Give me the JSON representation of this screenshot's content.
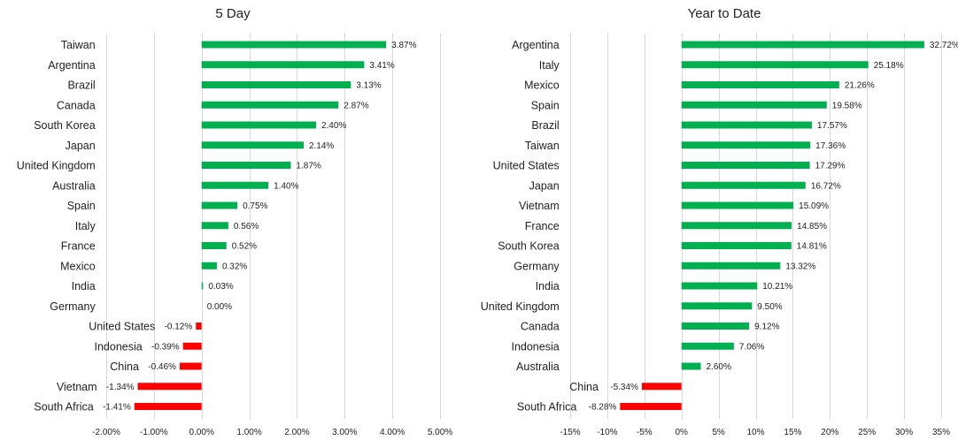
{
  "chart_data": [
    {
      "type": "bar",
      "orientation": "horizontal",
      "title": "5 Day",
      "categories": [
        "Taiwan",
        "Argentina",
        "Brazil",
        "Canada",
        "South Korea",
        "Japan",
        "United Kingdom",
        "Australia",
        "Spain",
        "Italy",
        "France",
        "Mexico",
        "India",
        "Germany",
        "United States",
        "Indonesia",
        "China",
        "Vietnam",
        "South Africa"
      ],
      "values": [
        3.87,
        3.41,
        3.13,
        2.87,
        2.4,
        2.14,
        1.87,
        1.4,
        0.75,
        0.56,
        0.52,
        0.32,
        0.03,
        0.0,
        -0.12,
        -0.39,
        -0.46,
        -1.34,
        -1.41
      ],
      "value_labels": [
        "3.87%",
        "3.41%",
        "3.13%",
        "2.87%",
        "2.40%",
        "2.14%",
        "1.87%",
        "1.40%",
        "0.75%",
        "0.56%",
        "0.52%",
        "0.32%",
        "0.03%",
        "0.00%",
        "-0.12%",
        "-0.39%",
        "-0.46%",
        "-1.34%",
        "-1.41%"
      ],
      "xlim": [
        -2,
        5
      ],
      "xticks": [
        -2,
        -1,
        0,
        1,
        2,
        3,
        4,
        5
      ],
      "xtick_labels": [
        "-2.00%",
        "-1.00%",
        "0.00%",
        "1.00%",
        "2.00%",
        "3.00%",
        "4.00%",
        "5.00%"
      ],
      "grid": true,
      "colors": {
        "positive": "#00b050",
        "negative": "#ff0000",
        "grid": "#d9d9d9"
      }
    },
    {
      "type": "bar",
      "orientation": "horizontal",
      "title": "Year to Date",
      "categories": [
        "Argentina",
        "Italy",
        "Mexico",
        "Spain",
        "Brazil",
        "Taiwan",
        "United States",
        "Japan",
        "Vietnam",
        "France",
        "South Korea",
        "Germany",
        "India",
        "United Kingdom",
        "Canada",
        "Indonesia",
        "Australia",
        "China",
        "South Africa"
      ],
      "values": [
        32.72,
        25.18,
        21.26,
        19.58,
        17.57,
        17.36,
        17.29,
        16.72,
        15.09,
        14.85,
        14.81,
        13.32,
        10.21,
        9.5,
        9.12,
        7.06,
        2.6,
        -5.34,
        -8.28
      ],
      "value_labels": [
        "32.72%",
        "25.18%",
        "21.26%",
        "19.58%",
        "17.57%",
        "17.36%",
        "17.29%",
        "16.72%",
        "15.09%",
        "14.85%",
        "14.81%",
        "13.32%",
        "10.21%",
        "9.50%",
        "9.12%",
        "7.06%",
        "2.60%",
        "-5.34%",
        "-8.28%"
      ],
      "xlim": [
        -15,
        35
      ],
      "xticks": [
        -15,
        -10,
        -5,
        0,
        5,
        10,
        15,
        20,
        25,
        30,
        35
      ],
      "xtick_labels": [
        "-15%",
        "-10%",
        "-5%",
        "0%",
        "5%",
        "10%",
        "15%",
        "20%",
        "25%",
        "30%",
        "35%"
      ],
      "grid": true,
      "colors": {
        "positive": "#00b050",
        "negative": "#ff0000",
        "grid": "#d9d9d9"
      }
    }
  ]
}
